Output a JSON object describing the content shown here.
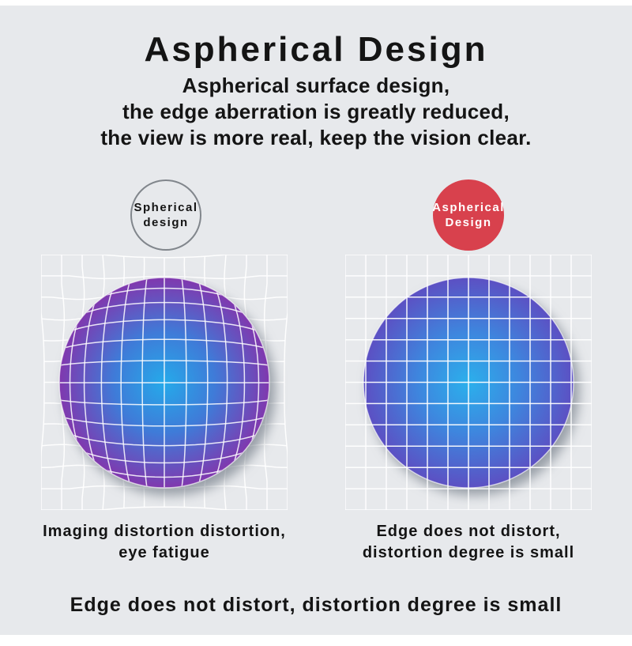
{
  "page": {
    "background_color": "#e7e9ec",
    "frame_color": "#ffffff",
    "text_color": "#141414",
    "title": "Aspherical Design",
    "subtitle_lines": [
      "Aspherical surface design,",
      "the edge aberration is greatly reduced,",
      "the view is more real, keep the vision clear."
    ],
    "footer": "Edge does not distort, distortion degree is small"
  },
  "panels": [
    {
      "badge": {
        "lines": [
          "Spherical",
          "design"
        ],
        "shape": "outlined-circle",
        "fill": "transparent",
        "border_color": "#81868c",
        "text_color": "#141414"
      },
      "caption_lines": [
        "Imaging distortion distortion,",
        "eye fatigue"
      ],
      "diagram": {
        "type": "spherical-distorted",
        "grid_cols": 12,
        "grid_rows": 12,
        "inner_mesh_lines": 13,
        "grid_color": "#ffffff",
        "gradient": {
          "center": "#25aaea",
          "mid": "#3f7bd8",
          "edge": "#8038ae"
        }
      }
    },
    {
      "badge": {
        "lines": [
          "Aspherical",
          "Design"
        ],
        "shape": "filled-circle",
        "fill": "#d8414d",
        "border_color": "#d8414d",
        "text_color": "#ffffff"
      },
      "caption_lines": [
        "Edge does not distort,",
        "distortion degree is small"
      ],
      "diagram": {
        "type": "aspherical-uniform",
        "grid_cols": 12,
        "grid_rows": 12,
        "inner_mesh_lines": 0,
        "grid_color": "#ffffff",
        "gradient": {
          "center": "#2bb0ec",
          "mid": "#3e86de",
          "edge": "#5c50c3"
        }
      }
    }
  ]
}
